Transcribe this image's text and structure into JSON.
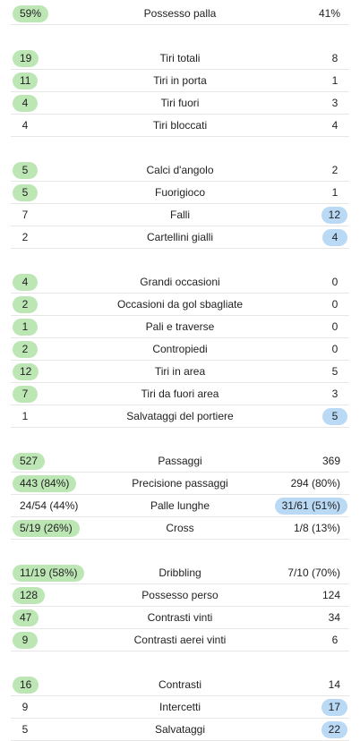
{
  "colors": {
    "home_highlight": "#bde6b5",
    "away_highlight": "#bad9f5"
  },
  "groups": [
    {
      "rows": [
        {
          "label": "Possesso palla",
          "home": "59%",
          "away": "41%",
          "winner": "home"
        }
      ]
    },
    {
      "rows": [
        {
          "label": "Tiri totali",
          "home": "19",
          "away": "8",
          "winner": "home"
        },
        {
          "label": "Tiri in porta",
          "home": "11",
          "away": "1",
          "winner": "home"
        },
        {
          "label": "Tiri fuori",
          "home": "4",
          "away": "3",
          "winner": "home"
        },
        {
          "label": "Tiri bloccati",
          "home": "4",
          "away": "4",
          "winner": "none"
        }
      ]
    },
    {
      "rows": [
        {
          "label": "Calci d'angolo",
          "home": "5",
          "away": "2",
          "winner": "home"
        },
        {
          "label": "Fuorigioco",
          "home": "5",
          "away": "1",
          "winner": "home"
        },
        {
          "label": "Falli",
          "home": "7",
          "away": "12",
          "winner": "away"
        },
        {
          "label": "Cartellini gialli",
          "home": "2",
          "away": "4",
          "winner": "away"
        }
      ]
    },
    {
      "rows": [
        {
          "label": "Grandi occasioni",
          "home": "4",
          "away": "0",
          "winner": "home"
        },
        {
          "label": "Occasioni da gol sbagliate",
          "home": "2",
          "away": "0",
          "winner": "home"
        },
        {
          "label": "Pali e traverse",
          "home": "1",
          "away": "0",
          "winner": "home"
        },
        {
          "label": "Contropiedi",
          "home": "2",
          "away": "0",
          "winner": "home"
        },
        {
          "label": "Tiri in area",
          "home": "12",
          "away": "5",
          "winner": "home"
        },
        {
          "label": "Tiri da fuori area",
          "home": "7",
          "away": "3",
          "winner": "home"
        },
        {
          "label": "Salvataggi del portiere",
          "home": "1",
          "away": "5",
          "winner": "away"
        }
      ]
    },
    {
      "rows": [
        {
          "label": "Passaggi",
          "home": "527",
          "away": "369",
          "winner": "home"
        },
        {
          "label": "Precisione passaggi",
          "home": "443 (84%)",
          "away": "294 (80%)",
          "winner": "home"
        },
        {
          "label": "Palle lunghe",
          "home": "24/54 (44%)",
          "away": "31/61 (51%)",
          "winner": "away"
        },
        {
          "label": "Cross",
          "home": "5/19 (26%)",
          "away": "1/8 (13%)",
          "winner": "home"
        }
      ]
    },
    {
      "rows": [
        {
          "label": "Dribbling",
          "home": "11/19 (58%)",
          "away": "7/10 (70%)",
          "winner": "home"
        },
        {
          "label": "Possesso perso",
          "home": "128",
          "away": "124",
          "winner": "home"
        },
        {
          "label": "Contrasti vinti",
          "home": "47",
          "away": "34",
          "winner": "home"
        },
        {
          "label": "Contrasti aerei vinti",
          "home": "9",
          "away": "6",
          "winner": "home"
        }
      ]
    },
    {
      "rows": [
        {
          "label": "Contrasti",
          "home": "16",
          "away": "14",
          "winner": "home"
        },
        {
          "label": "Intercetti",
          "home": "9",
          "away": "17",
          "winner": "away"
        },
        {
          "label": "Salvataggi",
          "home": "5",
          "away": "22",
          "winner": "away"
        }
      ]
    }
  ]
}
